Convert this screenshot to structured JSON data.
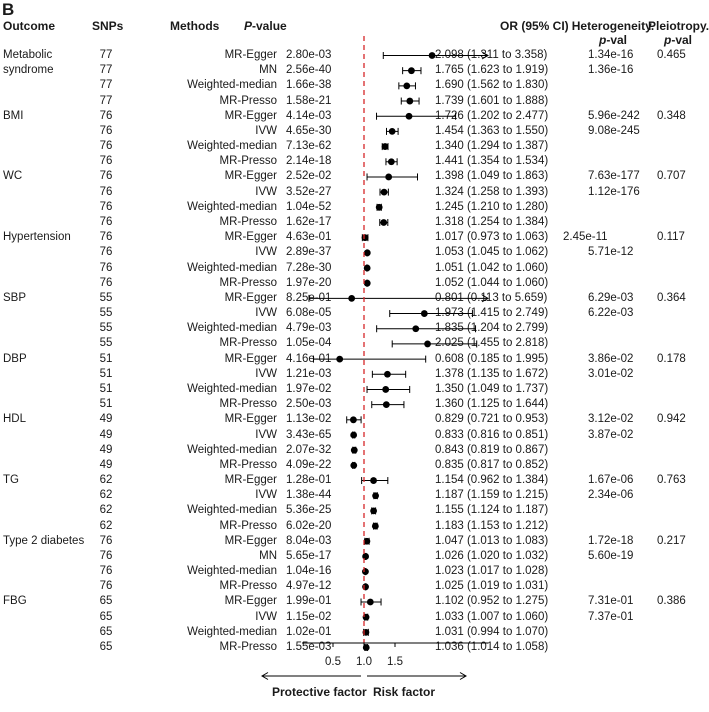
{
  "panel_label": "B",
  "headers": {
    "outcome": "Outcome",
    "snps": "SNPs",
    "methods": "Methods",
    "p_value_italic": "P",
    "p_value_rest": "-value",
    "or": "OR (95% CI)",
    "heterogeneity_line1": "Heterogeneity.",
    "heterogeneity_line2_italic": "p",
    "heterogeneity_line2_rest": "-val",
    "pleiotropy_line1": "Pleiotropy.",
    "pleiotropy_line2_italic": "p",
    "pleiotropy_line2_rest": "-val"
  },
  "axis": {
    "ticks": [
      "0.5",
      "1.0",
      "1.5"
    ],
    "left_caption": "Protective factor",
    "right_caption": "Risk factor"
  },
  "colors": {
    "reference_line": "#d62728",
    "marker": "#000000"
  },
  "chart_data": {
    "type": "forest",
    "xlim": [
      0.0,
      3.0
    ],
    "reference_value": 1.0,
    "arrow_indicates_ci_beyond_axis": true,
    "groups": [
      {
        "outcome": "Metabolic syndrome",
        "pleiotropy": "0.465",
        "rows": [
          {
            "snps": "77",
            "method": "MR-Egger",
            "p": "2.80e-03",
            "or": 2.098,
            "lo": 1.311,
            "hi": 3.358,
            "or_text": "2.098 (1.311 to 3.358)",
            "het": "1.34e-16"
          },
          {
            "snps": "77",
            "method": "MN",
            "p": "2.56e-40",
            "or": 1.765,
            "lo": 1.623,
            "hi": 1.919,
            "or_text": "1.765 (1.623 to 1.919)",
            "het": "1.36e-16"
          },
          {
            "snps": "77",
            "method": "Weighted-median",
            "p": "1.66e-38",
            "or": 1.69,
            "lo": 1.562,
            "hi": 1.83,
            "or_text": "1.690 (1.562 to 1.830)",
            "het": ""
          },
          {
            "snps": "77",
            "method": "MR-Presso",
            "p": "1.58e-21",
            "or": 1.739,
            "lo": 1.601,
            "hi": 1.888,
            "or_text": "1.739 (1.601 to 1.888)",
            "het": ""
          }
        ]
      },
      {
        "outcome": "BMI",
        "pleiotropy": "0.348",
        "rows": [
          {
            "snps": "76",
            "method": "MR-Egger",
            "p": "4.14e-03",
            "or": 1.726,
            "lo": 1.202,
            "hi": 2.477,
            "or_text": "1.726 (1.202 to 2.477)",
            "het": "5.96e-242"
          },
          {
            "snps": "76",
            "method": "IVW",
            "p": "4.65e-30",
            "or": 1.454,
            "lo": 1.363,
            "hi": 1.55,
            "or_text": "1.454 (1.363 to 1.550)",
            "het": "9.08e-245"
          },
          {
            "snps": "76",
            "method": "Weighted-median",
            "p": "7.13e-62",
            "or": 1.34,
            "lo": 1.294,
            "hi": 1.387,
            "or_text": "1.340 (1.294 to 1.387)",
            "het": ""
          },
          {
            "snps": "76",
            "method": "MR-Presso",
            "p": "2.14e-18",
            "or": 1.441,
            "lo": 1.354,
            "hi": 1.534,
            "or_text": "1.441 (1.354 to 1.534)",
            "het": ""
          }
        ]
      },
      {
        "outcome": "WC",
        "pleiotropy": "0.707",
        "rows": [
          {
            "snps": "76",
            "method": "MR-Egger",
            "p": "2.52e-02",
            "or": 1.398,
            "lo": 1.049,
            "hi": 1.863,
            "or_text": "1.398 (1.049 to 1.863)",
            "het": "7.63e-177"
          },
          {
            "snps": "76",
            "method": "IVW",
            "p": "3.52e-27",
            "or": 1.324,
            "lo": 1.258,
            "hi": 1.393,
            "or_text": "1.324 (1.258 to 1.393)",
            "het": "1.12e-176"
          },
          {
            "snps": "76",
            "method": "Weighted-median",
            "p": "1.04e-52",
            "or": 1.245,
            "lo": 1.21,
            "hi": 1.28,
            "or_text": "1.245 (1.210 to 1.280)",
            "het": ""
          },
          {
            "snps": "76",
            "method": "MR-Presso",
            "p": "1.62e-17",
            "or": 1.318,
            "lo": 1.254,
            "hi": 1.384,
            "or_text": "1.318 (1.254 to 1.384)",
            "het": ""
          }
        ]
      },
      {
        "outcome": "Hypertension",
        "pleiotropy": "0.117",
        "rows": [
          {
            "snps": "76",
            "method": "MR-Egger",
            "p": "4.63e-01",
            "or": 1.017,
            "lo": 0.973,
            "hi": 1.063,
            "or_text": "1.017 (0.973 to 1.063)",
            "het": "2.45e-11"
          },
          {
            "snps": "76",
            "method": "IVW",
            "p": "2.89e-37",
            "or": 1.053,
            "lo": 1.045,
            "hi": 1.062,
            "or_text": "1.053 (1.045 to 1.062)",
            "het": "5.71e-12"
          },
          {
            "snps": "76",
            "method": "Weighted-median",
            "p": "7.28e-30",
            "or": 1.051,
            "lo": 1.042,
            "hi": 1.06,
            "or_text": "1.051 (1.042 to 1.060)",
            "het": ""
          },
          {
            "snps": "76",
            "method": "MR-Presso",
            "p": "1.97e-20",
            "or": 1.052,
            "lo": 1.044,
            "hi": 1.06,
            "or_text": "1.052 (1.044 to 1.060)",
            "het": ""
          }
        ]
      },
      {
        "outcome": "SBP",
        "pleiotropy": "0.364",
        "rows": [
          {
            "snps": "55",
            "method": "MR-Egger",
            "p": "8.25e-01",
            "or": 0.801,
            "lo": 0.113,
            "hi": 5.659,
            "or_text": "0.801 (0.113 to 5.659)",
            "het": "6.29e-03"
          },
          {
            "snps": "55",
            "method": "IVW",
            "p": "6.08e-05",
            "or": 1.973,
            "lo": 1.415,
            "hi": 2.749,
            "or_text": "1.973 (1.415 to 2.749)",
            "het": "6.22e-03"
          },
          {
            "snps": "55",
            "method": "Weighted-median",
            "p": "4.79e-03",
            "or": 1.835,
            "lo": 1.204,
            "hi": 2.799,
            "or_text": "1.835 (1.204 to 2.799)",
            "het": ""
          },
          {
            "snps": "55",
            "method": "MR-Presso",
            "p": "1.05e-04",
            "or": 2.025,
            "lo": 1.455,
            "hi": 2.818,
            "or_text": "2.025 (1.455 to 2.818)",
            "het": ""
          }
        ]
      },
      {
        "outcome": "DBP",
        "pleiotropy": "0.178",
        "rows": [
          {
            "snps": "51",
            "method": "MR-Egger",
            "p": "4.16e-01",
            "or": 0.608,
            "lo": 0.185,
            "hi": 1.995,
            "or_text": "0.608 (0.185 to 1.995)",
            "het": "3.86e-02"
          },
          {
            "snps": "51",
            "method": "IVW",
            "p": "1.21e-03",
            "or": 1.378,
            "lo": 1.135,
            "hi": 1.672,
            "or_text": "1.378 (1.135 to 1.672)",
            "het": "3.01e-02"
          },
          {
            "snps": "51",
            "method": "Weighted-median",
            "p": "1.97e-02",
            "or": 1.35,
            "lo": 1.049,
            "hi": 1.737,
            "or_text": "1.350 (1.049 to 1.737)",
            "het": ""
          },
          {
            "snps": "51",
            "method": "MR-Presso",
            "p": "2.50e-03",
            "or": 1.36,
            "lo": 1.125,
            "hi": 1.644,
            "or_text": "1.360 (1.125 to 1.644)",
            "het": ""
          }
        ]
      },
      {
        "outcome": "HDL",
        "pleiotropy": "0.942",
        "rows": [
          {
            "snps": "49",
            "method": "MR-Egger",
            "p": "1.13e-02",
            "or": 0.829,
            "lo": 0.721,
            "hi": 0.953,
            "or_text": "0.829 (0.721 to 0.953)",
            "het": "3.12e-02"
          },
          {
            "snps": "49",
            "method": "IVW",
            "p": "3.43e-65",
            "or": 0.833,
            "lo": 0.816,
            "hi": 0.851,
            "or_text": "0.833 (0.816 to 0.851)",
            "het": "3.87e-02"
          },
          {
            "snps": "49",
            "method": "Weighted-median",
            "p": "2.07e-32",
            "or": 0.843,
            "lo": 0.819,
            "hi": 0.867,
            "or_text": "0.843 (0.819 to 0.867)",
            "het": ""
          },
          {
            "snps": "49",
            "method": "MR-Presso",
            "p": "4.09e-22",
            "or": 0.835,
            "lo": 0.817,
            "hi": 0.852,
            "or_text": "0.835 (0.817 to 0.852)",
            "het": ""
          }
        ]
      },
      {
        "outcome": "TG",
        "pleiotropy": "0.763",
        "rows": [
          {
            "snps": "62",
            "method": "MR-Egger",
            "p": "1.28e-01",
            "or": 1.154,
            "lo": 0.962,
            "hi": 1.384,
            "or_text": "1.154 (0.962 to 1.384)",
            "het": "1.67e-06"
          },
          {
            "snps": "62",
            "method": "IVW",
            "p": "1.38e-44",
            "or": 1.187,
            "lo": 1.159,
            "hi": 1.215,
            "or_text": "1.187 (1.159 to 1.215)",
            "het": "2.34e-06"
          },
          {
            "snps": "62",
            "method": "Weighted-median",
            "p": "5.36e-25",
            "or": 1.155,
            "lo": 1.124,
            "hi": 1.187,
            "or_text": "1.155 (1.124 to 1.187)",
            "het": ""
          },
          {
            "snps": "62",
            "method": "MR-Presso",
            "p": "6.02e-20",
            "or": 1.183,
            "lo": 1.153,
            "hi": 1.212,
            "or_text": "1.183 (1.153 to 1.212)",
            "het": ""
          }
        ]
      },
      {
        "outcome": "Type 2 diabetes",
        "pleiotropy": "0.217",
        "rows": [
          {
            "snps": "76",
            "method": "MR-Egger",
            "p": "8.04e-03",
            "or": 1.047,
            "lo": 1.013,
            "hi": 1.083,
            "or_text": "1.047 (1.013 to 1.083)",
            "het": "1.72e-18"
          },
          {
            "snps": "76",
            "method": "MN",
            "p": "5.65e-17",
            "or": 1.026,
            "lo": 1.02,
            "hi": 1.032,
            "or_text": "1.026 (1.020 to 1.032)",
            "het": "5.60e-19"
          },
          {
            "snps": "76",
            "method": "Weighted-median",
            "p": "1.04e-16",
            "or": 1.023,
            "lo": 1.017,
            "hi": 1.028,
            "or_text": "1.023 (1.017 to 1.028)",
            "het": ""
          },
          {
            "snps": "76",
            "method": "MR-Presso",
            "p": "4.97e-12",
            "or": 1.025,
            "lo": 1.019,
            "hi": 1.031,
            "or_text": "1.025 (1.019 to 1.031)",
            "het": ""
          }
        ]
      },
      {
        "outcome": "FBG",
        "pleiotropy": "0.386",
        "rows": [
          {
            "snps": "65",
            "method": "MR-Egger",
            "p": "1.99e-01",
            "or": 1.102,
            "lo": 0.952,
            "hi": 1.275,
            "or_text": "1.102 (0.952 to 1.275)",
            "het": "7.31e-01"
          },
          {
            "snps": "65",
            "method": "IVW",
            "p": "1.15e-02",
            "or": 1.033,
            "lo": 1.007,
            "hi": 1.06,
            "or_text": "1.033 (1.007 to 1.060)",
            "het": "7.37e-01"
          },
          {
            "snps": "65",
            "method": "Weighted-median",
            "p": "1.02e-01",
            "or": 1.031,
            "lo": 0.994,
            "hi": 1.07,
            "or_text": "1.031 (0.994 to 1.070)",
            "het": ""
          },
          {
            "snps": "65",
            "method": "MR-Presso",
            "p": "1.55e-03",
            "or": 1.036,
            "lo": 1.014,
            "hi": 1.058,
            "or_text": "1.036 (1.014 to 1.058)",
            "het": ""
          }
        ]
      }
    ]
  }
}
